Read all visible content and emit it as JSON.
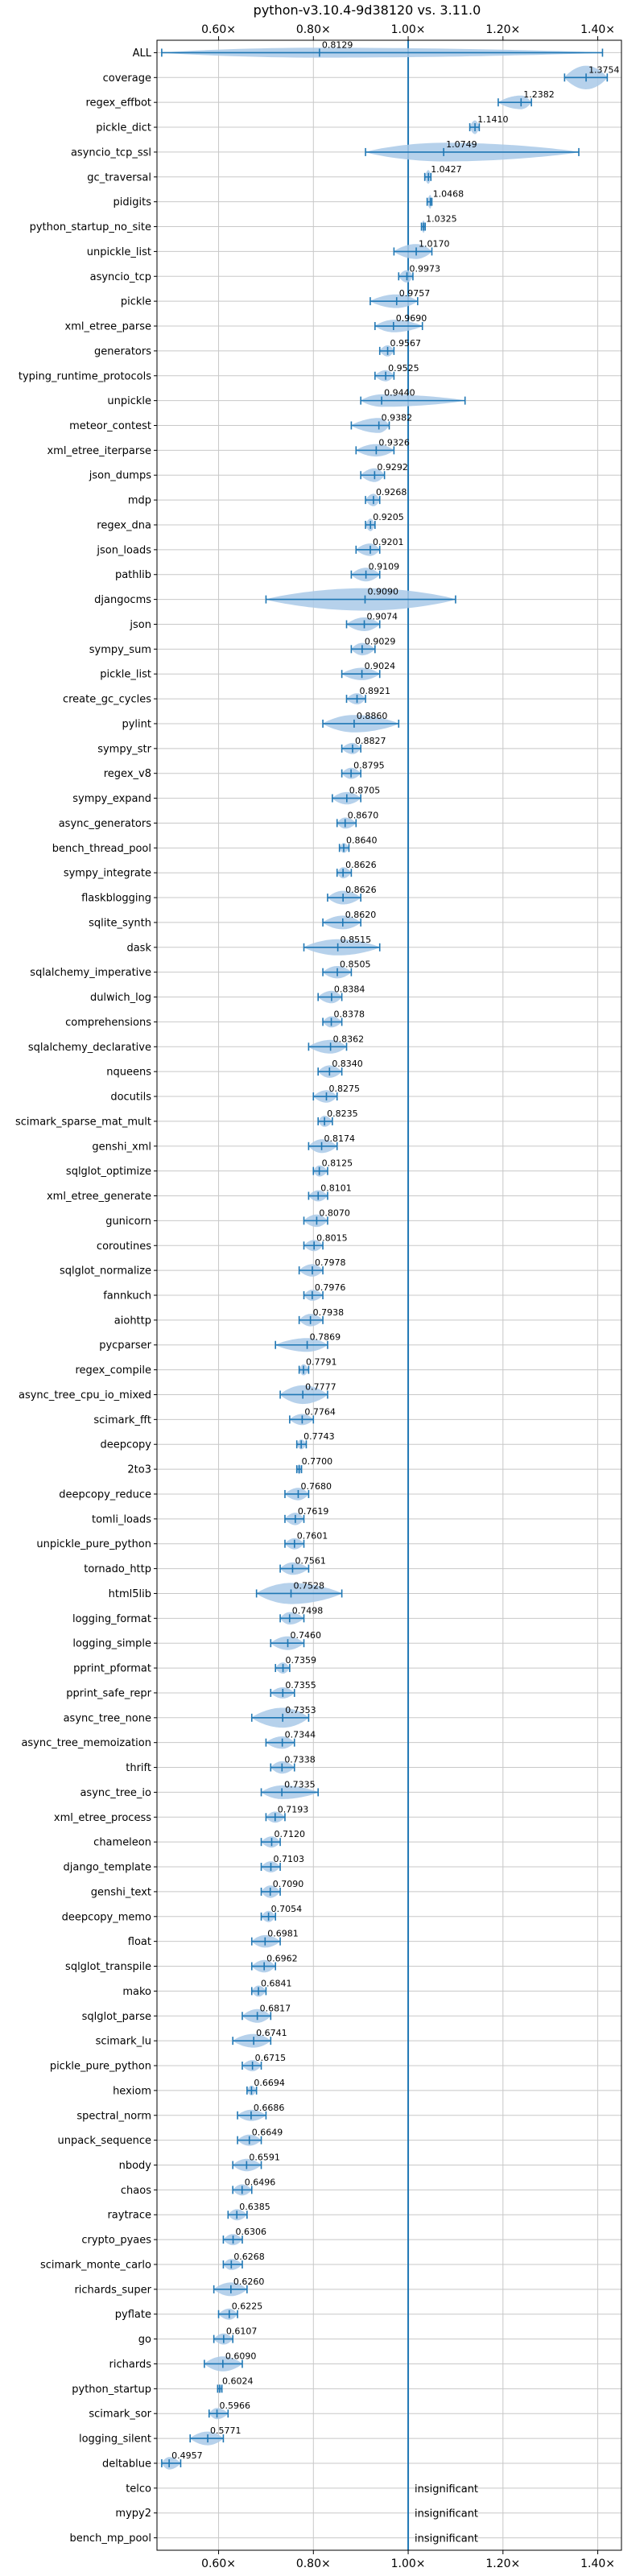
{
  "chart_data": {
    "type": "violin",
    "title": "python-v3.10.4-9d38120 vs. 3.11.0",
    "xlabel": "",
    "ylabel": "",
    "xlim": [
      0.47,
      1.45
    ],
    "x_ticks": [
      0.6,
      0.8,
      1.0,
      1.2,
      1.4
    ],
    "x_tick_labels": [
      "0.60×",
      "0.80×",
      "1.00×",
      "1.20×",
      "1.40×"
    ],
    "tick_labels_top": true,
    "tick_labels_bottom": true,
    "grid": true,
    "reference_line": 1.0,
    "colors": {
      "violin": "#a9c9e8",
      "line": "#1f77b4",
      "grid": "#c8c8c8",
      "spine": "#000000"
    },
    "series": [
      {
        "name": "ALL",
        "median": 0.8129,
        "label": "0.8129",
        "min": 0.48,
        "max": 1.41,
        "width": 0.4
      },
      {
        "name": "coverage",
        "median": 1.3754,
        "label": "1.3754",
        "min": 1.33,
        "max": 1.42,
        "width": 0.95
      },
      {
        "name": "regex_effbot",
        "median": 1.2382,
        "label": "1.2382",
        "min": 1.19,
        "max": 1.26,
        "width": 0.55
      },
      {
        "name": "pickle_dict",
        "median": 1.141,
        "label": "1.1410",
        "min": 1.13,
        "max": 1.15,
        "width": 0.55
      },
      {
        "name": "asyncio_tcp_ssl",
        "median": 1.0749,
        "label": "1.0749",
        "min": 0.91,
        "max": 1.36,
        "width": 0.75
      },
      {
        "name": "gc_traversal",
        "median": 1.0427,
        "label": "1.0427",
        "min": 1.035,
        "max": 1.048,
        "width": 0.55
      },
      {
        "name": "pidigits",
        "median": 1.0468,
        "label": "1.0468",
        "min": 1.04,
        "max": 1.05,
        "width": 0.55
      },
      {
        "name": "python_startup_no_site",
        "median": 1.0325,
        "label": "1.0325",
        "min": 1.028,
        "max": 1.036,
        "width": 0.5
      },
      {
        "name": "unpickle_list",
        "median": 1.017,
        "label": "1.0170",
        "min": 0.97,
        "max": 1.05,
        "width": 0.6
      },
      {
        "name": "asyncio_tcp",
        "median": 0.9973,
        "label": "0.9973",
        "min": 0.98,
        "max": 1.01,
        "width": 0.5
      },
      {
        "name": "pickle",
        "median": 0.9757,
        "label": "0.9757",
        "min": 0.92,
        "max": 1.02,
        "width": 0.55
      },
      {
        "name": "xml_etree_parse",
        "median": 0.969,
        "label": "0.9690",
        "min": 0.93,
        "max": 1.03,
        "width": 0.5
      },
      {
        "name": "generators",
        "median": 0.9567,
        "label": "0.9567",
        "min": 0.94,
        "max": 0.97,
        "width": 0.45
      },
      {
        "name": "typing_runtime_protocols",
        "median": 0.9525,
        "label": "0.9525",
        "min": 0.93,
        "max": 0.97,
        "width": 0.45
      },
      {
        "name": "unpickle",
        "median": 0.944,
        "label": "0.9440",
        "min": 0.9,
        "max": 1.12,
        "width": 0.5
      },
      {
        "name": "meteor_contest",
        "median": 0.9382,
        "label": "0.9382",
        "min": 0.88,
        "max": 0.96,
        "width": 0.6
      },
      {
        "name": "xml_etree_iterparse",
        "median": 0.9326,
        "label": "0.9326",
        "min": 0.89,
        "max": 0.97,
        "width": 0.5
      },
      {
        "name": "json_dumps",
        "median": 0.9292,
        "label": "0.9292",
        "min": 0.9,
        "max": 0.95,
        "width": 0.55
      },
      {
        "name": "mdp",
        "median": 0.9268,
        "label": "0.9268",
        "min": 0.91,
        "max": 0.94,
        "width": 0.5
      },
      {
        "name": "regex_dna",
        "median": 0.9205,
        "label": "0.9205",
        "min": 0.91,
        "max": 0.93,
        "width": 0.5
      },
      {
        "name": "json_loads",
        "median": 0.9201,
        "label": "0.9201",
        "min": 0.89,
        "max": 0.94,
        "width": 0.5
      },
      {
        "name": "pathlib",
        "median": 0.9109,
        "label": "0.9109",
        "min": 0.88,
        "max": 0.94,
        "width": 0.55
      },
      {
        "name": "djangocms",
        "median": 0.909,
        "label": "0.9090",
        "min": 0.7,
        "max": 1.1,
        "width": 0.9
      },
      {
        "name": "json",
        "median": 0.9074,
        "label": "0.9074",
        "min": 0.87,
        "max": 0.94,
        "width": 0.55
      },
      {
        "name": "sympy_sum",
        "median": 0.9029,
        "label": "0.9029",
        "min": 0.88,
        "max": 0.93,
        "width": 0.5
      },
      {
        "name": "pickle_list",
        "median": 0.9024,
        "label": "0.9024",
        "min": 0.86,
        "max": 0.94,
        "width": 0.5
      },
      {
        "name": "create_gc_cycles",
        "median": 0.8921,
        "label": "0.8921",
        "min": 0.87,
        "max": 0.91,
        "width": 0.45
      },
      {
        "name": "pylint",
        "median": 0.886,
        "label": "0.8860",
        "min": 0.82,
        "max": 0.98,
        "width": 0.7
      },
      {
        "name": "sympy_str",
        "median": 0.8827,
        "label": "0.8827",
        "min": 0.86,
        "max": 0.9,
        "width": 0.45
      },
      {
        "name": "regex_v8",
        "median": 0.8795,
        "label": "0.8795",
        "min": 0.86,
        "max": 0.9,
        "width": 0.45
      },
      {
        "name": "sympy_expand",
        "median": 0.8705,
        "label": "0.8705",
        "min": 0.84,
        "max": 0.9,
        "width": 0.5
      },
      {
        "name": "async_generators",
        "median": 0.867,
        "label": "0.8670",
        "min": 0.85,
        "max": 0.89,
        "width": 0.45
      },
      {
        "name": "bench_thread_pool",
        "median": 0.864,
        "label": "0.8640",
        "min": 0.855,
        "max": 0.875,
        "width": 0.4
      },
      {
        "name": "sympy_integrate",
        "median": 0.8626,
        "label": "0.8626",
        "min": 0.85,
        "max": 0.88,
        "width": 0.45
      },
      {
        "name": "flaskblogging",
        "median": 0.8626,
        "label": "0.8626",
        "min": 0.83,
        "max": 0.9,
        "width": 0.55
      },
      {
        "name": "sqlite_synth",
        "median": 0.862,
        "label": "0.8620",
        "min": 0.82,
        "max": 0.9,
        "width": 0.55
      },
      {
        "name": "dask",
        "median": 0.8515,
        "label": "0.8515",
        "min": 0.78,
        "max": 0.94,
        "width": 0.65
      },
      {
        "name": "sqlalchemy_imperative",
        "median": 0.8505,
        "label": "0.8505",
        "min": 0.82,
        "max": 0.88,
        "width": 0.5
      },
      {
        "name": "dulwich_log",
        "median": 0.8384,
        "label": "0.8384",
        "min": 0.81,
        "max": 0.86,
        "width": 0.5
      },
      {
        "name": "comprehensions",
        "median": 0.8378,
        "label": "0.8378",
        "min": 0.82,
        "max": 0.86,
        "width": 0.45
      },
      {
        "name": "sqlalchemy_declarative",
        "median": 0.8362,
        "label": "0.8362",
        "min": 0.79,
        "max": 0.87,
        "width": 0.55
      },
      {
        "name": "nqueens",
        "median": 0.834,
        "label": "0.8340",
        "min": 0.81,
        "max": 0.86,
        "width": 0.5
      },
      {
        "name": "docutils",
        "median": 0.8275,
        "label": "0.8275",
        "min": 0.8,
        "max": 0.85,
        "width": 0.5
      },
      {
        "name": "scimark_sparse_mat_mult",
        "median": 0.8235,
        "label": "0.8235",
        "min": 0.81,
        "max": 0.84,
        "width": 0.45
      },
      {
        "name": "genshi_xml",
        "median": 0.8174,
        "label": "0.8174",
        "min": 0.79,
        "max": 0.85,
        "width": 0.55
      },
      {
        "name": "sqlglot_optimize",
        "median": 0.8125,
        "label": "0.8125",
        "min": 0.8,
        "max": 0.83,
        "width": 0.45
      },
      {
        "name": "xml_etree_generate",
        "median": 0.8101,
        "label": "0.8101",
        "min": 0.79,
        "max": 0.83,
        "width": 0.45
      },
      {
        "name": "gunicorn",
        "median": 0.807,
        "label": "0.8070",
        "min": 0.78,
        "max": 0.83,
        "width": 0.5
      },
      {
        "name": "coroutines",
        "median": 0.8015,
        "label": "0.8015",
        "min": 0.78,
        "max": 0.82,
        "width": 0.45
      },
      {
        "name": "sqlglot_normalize",
        "median": 0.7978,
        "label": "0.7978",
        "min": 0.77,
        "max": 0.82,
        "width": 0.5
      },
      {
        "name": "fannkuch",
        "median": 0.7976,
        "label": "0.7976",
        "min": 0.78,
        "max": 0.82,
        "width": 0.45
      },
      {
        "name": "aiohttp",
        "median": 0.7938,
        "label": "0.7938",
        "min": 0.77,
        "max": 0.82,
        "width": 0.5
      },
      {
        "name": "pycparser",
        "median": 0.7869,
        "label": "0.7869",
        "min": 0.72,
        "max": 0.83,
        "width": 0.55
      },
      {
        "name": "regex_compile",
        "median": 0.7791,
        "label": "0.7791",
        "min": 0.77,
        "max": 0.79,
        "width": 0.45
      },
      {
        "name": "async_tree_cpu_io_mixed",
        "median": 0.7777,
        "label": "0.7777",
        "min": 0.73,
        "max": 0.83,
        "width": 0.75
      },
      {
        "name": "scimark_fft",
        "median": 0.7764,
        "label": "0.7764",
        "min": 0.75,
        "max": 0.8,
        "width": 0.45
      },
      {
        "name": "deepcopy",
        "median": 0.7743,
        "label": "0.7743",
        "min": 0.765,
        "max": 0.785,
        "width": 0.4
      },
      {
        "name": "2to3",
        "median": 0.77,
        "label": "0.7700",
        "min": 0.765,
        "max": 0.775,
        "width": 0.4
      },
      {
        "name": "deepcopy_reduce",
        "median": 0.768,
        "label": "0.7680",
        "min": 0.74,
        "max": 0.79,
        "width": 0.5
      },
      {
        "name": "tomli_loads",
        "median": 0.7619,
        "label": "0.7619",
        "min": 0.74,
        "max": 0.78,
        "width": 0.5
      },
      {
        "name": "unpickle_pure_python",
        "median": 0.7601,
        "label": "0.7601",
        "min": 0.74,
        "max": 0.78,
        "width": 0.45
      },
      {
        "name": "tornado_http",
        "median": 0.7561,
        "label": "0.7561",
        "min": 0.73,
        "max": 0.79,
        "width": 0.5
      },
      {
        "name": "html5lib",
        "median": 0.7528,
        "label": "0.7528",
        "min": 0.68,
        "max": 0.86,
        "width": 0.85
      },
      {
        "name": "logging_format",
        "median": 0.7498,
        "label": "0.7498",
        "min": 0.73,
        "max": 0.78,
        "width": 0.5
      },
      {
        "name": "logging_simple",
        "median": 0.746,
        "label": "0.7460",
        "min": 0.71,
        "max": 0.78,
        "width": 0.55
      },
      {
        "name": "pprint_pformat",
        "median": 0.7359,
        "label": "0.7359",
        "min": 0.72,
        "max": 0.75,
        "width": 0.45
      },
      {
        "name": "pprint_safe_repr",
        "median": 0.7355,
        "label": "0.7355",
        "min": 0.71,
        "max": 0.76,
        "width": 0.45
      },
      {
        "name": "async_tree_none",
        "median": 0.7353,
        "label": "0.7353",
        "min": 0.67,
        "max": 0.79,
        "width": 0.8
      },
      {
        "name": "async_tree_memoization",
        "median": 0.7344,
        "label": "0.7344",
        "min": 0.7,
        "max": 0.76,
        "width": 0.5
      },
      {
        "name": "thrift",
        "median": 0.7338,
        "label": "0.7338",
        "min": 0.71,
        "max": 0.76,
        "width": 0.5
      },
      {
        "name": "async_tree_io",
        "median": 0.7335,
        "label": "0.7335",
        "min": 0.69,
        "max": 0.81,
        "width": 0.55
      },
      {
        "name": "xml_etree_process",
        "median": 0.7193,
        "label": "0.7193",
        "min": 0.7,
        "max": 0.74,
        "width": 0.45
      },
      {
        "name": "chameleon",
        "median": 0.712,
        "label": "0.7120",
        "min": 0.69,
        "max": 0.73,
        "width": 0.45
      },
      {
        "name": "django_template",
        "median": 0.7103,
        "label": "0.7103",
        "min": 0.69,
        "max": 0.73,
        "width": 0.45
      },
      {
        "name": "genshi_text",
        "median": 0.709,
        "label": "0.7090",
        "min": 0.69,
        "max": 0.73,
        "width": 0.5
      },
      {
        "name": "deepcopy_memo",
        "median": 0.7054,
        "label": "0.7054",
        "min": 0.69,
        "max": 0.72,
        "width": 0.45
      },
      {
        "name": "float",
        "median": 0.6981,
        "label": "0.6981",
        "min": 0.67,
        "max": 0.73,
        "width": 0.5
      },
      {
        "name": "sqlglot_transpile",
        "median": 0.6962,
        "label": "0.6962",
        "min": 0.67,
        "max": 0.72,
        "width": 0.5
      },
      {
        "name": "mako",
        "median": 0.6841,
        "label": "0.6841",
        "min": 0.67,
        "max": 0.7,
        "width": 0.45
      },
      {
        "name": "sqlglot_parse",
        "median": 0.6817,
        "label": "0.6817",
        "min": 0.65,
        "max": 0.71,
        "width": 0.55
      },
      {
        "name": "scimark_lu",
        "median": 0.6741,
        "label": "0.6741",
        "min": 0.63,
        "max": 0.71,
        "width": 0.55
      },
      {
        "name": "pickle_pure_python",
        "median": 0.6715,
        "label": "0.6715",
        "min": 0.65,
        "max": 0.69,
        "width": 0.45
      },
      {
        "name": "hexiom",
        "median": 0.6694,
        "label": "0.6694",
        "min": 0.66,
        "max": 0.68,
        "width": 0.4
      },
      {
        "name": "spectral_norm",
        "median": 0.6686,
        "label": "0.6686",
        "min": 0.64,
        "max": 0.7,
        "width": 0.45
      },
      {
        "name": "unpack_sequence",
        "median": 0.6649,
        "label": "0.6649",
        "min": 0.64,
        "max": 0.69,
        "width": 0.45
      },
      {
        "name": "nbody",
        "median": 0.6591,
        "label": "0.6591",
        "min": 0.63,
        "max": 0.69,
        "width": 0.5
      },
      {
        "name": "chaos",
        "median": 0.6496,
        "label": "0.6496",
        "min": 0.63,
        "max": 0.67,
        "width": 0.45
      },
      {
        "name": "raytrace",
        "median": 0.6385,
        "label": "0.6385",
        "min": 0.62,
        "max": 0.66,
        "width": 0.45
      },
      {
        "name": "crypto_pyaes",
        "median": 0.6306,
        "label": "0.6306",
        "min": 0.61,
        "max": 0.65,
        "width": 0.45
      },
      {
        "name": "scimark_monte_carlo",
        "median": 0.6268,
        "label": "0.6268",
        "min": 0.61,
        "max": 0.65,
        "width": 0.45
      },
      {
        "name": "richards_super",
        "median": 0.626,
        "label": "0.6260",
        "min": 0.59,
        "max": 0.66,
        "width": 0.55
      },
      {
        "name": "pyflate",
        "median": 0.6225,
        "label": "0.6225",
        "min": 0.6,
        "max": 0.64,
        "width": 0.45
      },
      {
        "name": "go",
        "median": 0.6107,
        "label": "0.6107",
        "min": 0.59,
        "max": 0.63,
        "width": 0.45
      },
      {
        "name": "richards",
        "median": 0.609,
        "label": "0.6090",
        "min": 0.57,
        "max": 0.65,
        "width": 0.6
      },
      {
        "name": "python_startup",
        "median": 0.6024,
        "label": "0.6024",
        "min": 0.598,
        "max": 0.607,
        "width": 0.35
      },
      {
        "name": "scimark_sor",
        "median": 0.5966,
        "label": "0.5966",
        "min": 0.58,
        "max": 0.62,
        "width": 0.45
      },
      {
        "name": "logging_silent",
        "median": 0.5771,
        "label": "0.5771",
        "min": 0.54,
        "max": 0.61,
        "width": 0.55
      },
      {
        "name": "deltablue",
        "median": 0.4957,
        "label": "0.4957",
        "min": 0.48,
        "max": 0.52,
        "width": 0.5
      },
      {
        "name": "telco",
        "median": null,
        "label": "insignificant"
      },
      {
        "name": "mypy2",
        "median": null,
        "label": "insignificant"
      },
      {
        "name": "bench_mp_pool",
        "median": null,
        "label": "insignificant"
      }
    ]
  }
}
